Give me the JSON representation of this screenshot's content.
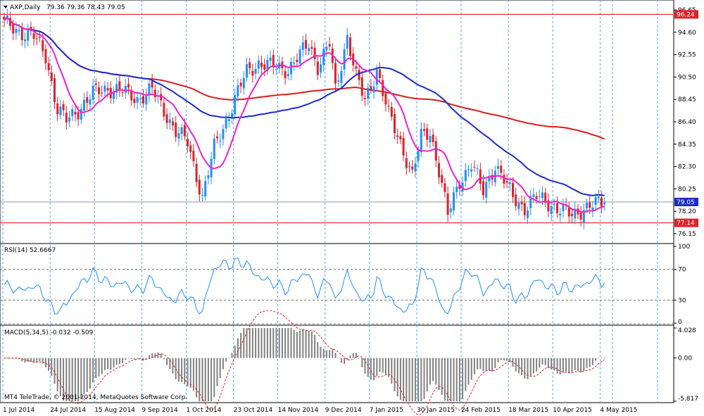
{
  "header": {
    "symbol_label": "AXP,Daily",
    "ohlc_label": "79.36 79.36 78.43 79.05"
  },
  "footer": {
    "copyright": "MT4 TeleTrade, © 2001-2014, MetaQuotes Software Corp."
  },
  "colors": {
    "background": "#ffffff",
    "grid": "#1e90ff",
    "bull_candle": "#1e90ff",
    "bear_candle": "#e0202a",
    "ma_fast": "#ee22cc",
    "ma_mid": "#1a2ccc",
    "ma_slow": "#dd1a1a",
    "level_line": "#e0202a",
    "rsi_line": "#1e90ff",
    "macd_hist": "#808080",
    "macd_signal": "#e02020"
  },
  "chart_data": [
    {
      "type": "candlestick",
      "name": "price",
      "title": "AXP,Daily",
      "ylim": [
        75.5,
        97.3
      ],
      "y_ticks": [
        "96.65",
        "94.60",
        "92.55",
        "90.50",
        "88.45",
        "86.40",
        "84.35",
        "82.30",
        "80.25",
        "78.20",
        "76.15"
      ],
      "x_ticks": [
        "1 Jul 2014",
        "24 Jul 2014",
        "15 Aug 2014",
        "9 Sep 2014",
        "1 Oct 2014",
        "23 Oct 2014",
        "14 Nov 2014",
        "9 Dec 2014",
        "7 Jan 2015",
        "30 Jan 2015",
        "24 Feb 2015",
        "18 Mar 2015",
        "10 Apr 2015",
        "4 May 2015"
      ],
      "levels": [
        {
          "value": 96.24,
          "label": "96.24",
          "style": "red"
        },
        {
          "value": 79.05,
          "label": "79.05",
          "style": "current"
        },
        {
          "value": 77.14,
          "label": "77.14",
          "style": "red"
        }
      ],
      "close_anchors": [
        [
          0,
          95.4
        ],
        [
          5,
          94.7
        ],
        [
          10,
          94.2
        ],
        [
          14,
          92.5
        ],
        [
          18,
          87.5
        ],
        [
          21,
          86.5
        ],
        [
          25,
          87.5
        ],
        [
          30,
          89.0
        ],
        [
          35,
          89.5
        ],
        [
          40,
          89.2
        ],
        [
          45,
          88.5
        ],
        [
          50,
          89.3
        ],
        [
          55,
          87.0
        ],
        [
          58,
          85.5
        ],
        [
          62,
          84.5
        ],
        [
          67,
          79.5
        ],
        [
          71,
          84.0
        ],
        [
          75,
          86.5
        ],
        [
          78,
          88.5
        ],
        [
          82,
          91.0
        ],
        [
          86,
          91.8
        ],
        [
          90,
          91.5
        ],
        [
          96,
          91.2
        ],
        [
          100,
          92.5
        ],
        [
          103,
          93.6
        ],
        [
          106,
          91.5
        ],
        [
          110,
          93.5
        ],
        [
          112,
          89.2
        ],
        [
          116,
          94.3
        ],
        [
          119,
          90.5
        ],
        [
          122,
          88.3
        ],
        [
          126,
          91.2
        ],
        [
          130,
          87.0
        ],
        [
          134,
          84.5
        ],
        [
          138,
          81.5
        ],
        [
          141,
          85.0
        ],
        [
          144,
          85.5
        ],
        [
          147,
          82.0
        ],
        [
          150,
          77.8
        ],
        [
          154,
          81.0
        ],
        [
          158,
          82.5
        ],
        [
          162,
          80.0
        ],
        [
          166,
          82.5
        ],
        [
          169,
          81.0
        ],
        [
          172,
          79.5
        ],
        [
          176,
          78.5
        ],
        [
          180,
          79.5
        ],
        [
          184,
          79.0
        ],
        [
          188,
          78.3
        ],
        [
          192,
          77.8
        ],
        [
          196,
          78.5
        ],
        [
          200,
          78.8
        ],
        [
          203,
          79.05
        ]
      ],
      "volatility_note": "",
      "ma_periods": {
        "fast": 10,
        "mid": 50,
        "slow": 200
      }
    },
    {
      "type": "line",
      "name": "rsi",
      "title": "RSI(14) 52.6667",
      "label": "RSI(14)",
      "last_value": "52.6667",
      "ylim": [
        0,
        100
      ],
      "y_ticks": [
        "100",
        "70",
        "30",
        "0"
      ],
      "levels": [
        70,
        30
      ]
    },
    {
      "type": "bar",
      "name": "macd",
      "title": "MACD(5,34,5) -0.032 -0.509",
      "label": "MACD(5,34,5)",
      "last_values": "-0.032 -0.509",
      "ylim": [
        -5.817,
        4.028
      ],
      "y_ticks": [
        "4.028",
        "0.00",
        "-5.817"
      ]
    }
  ]
}
